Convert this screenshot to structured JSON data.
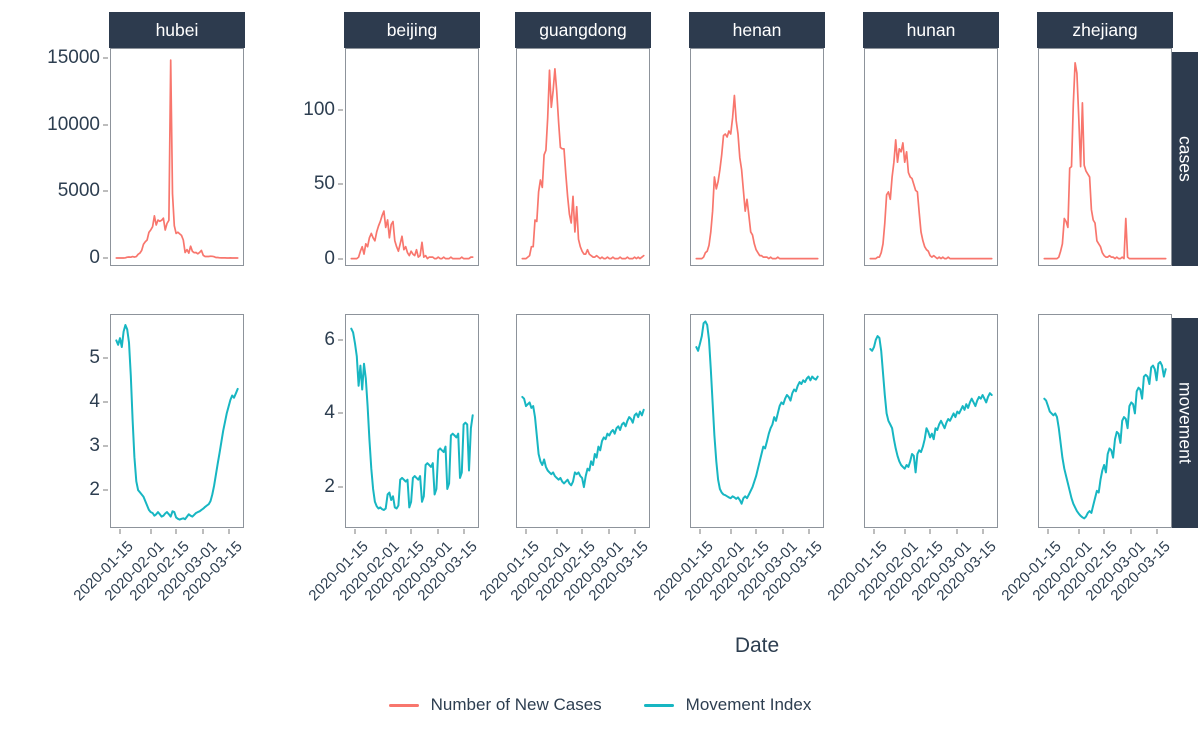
{
  "figure": {
    "x_axis": {
      "label": "Date",
      "tick_labels": [
        "2020-01-15",
        "2020-02-01",
        "2020-02-15",
        "2020-03-01",
        "2020-03-15"
      ]
    },
    "legend": {
      "items": [
        {
          "label": "Number of New Cases",
          "color": "#F8766D"
        },
        {
          "label": "Movement Index",
          "color": "#17B6C2"
        }
      ]
    },
    "colors": {
      "strip_bg": "#2D3B4E",
      "strip_text": "#FFFFFF",
      "axis_text": "#2D3E50",
      "panel_border": "#8D939B",
      "tick_mark": "#BDBDBD",
      "background": "#FFFFFF",
      "cases_line": "#F8766D",
      "movement_line": "#17B6C2"
    }
  },
  "chart_data": {
    "type": "line",
    "facet_columns": [
      "hubei",
      "beijing",
      "guangdong",
      "henan",
      "hunan",
      "zhejiang"
    ],
    "facet_rows": [
      "cases",
      "movement"
    ],
    "x": {
      "start_date": "2020-01-13",
      "step_days": 1,
      "range": [
        "2020-01-13",
        "2020-03-20"
      ]
    },
    "x_ticks": [
      {
        "label": "2020-01-15",
        "day": 2
      },
      {
        "label": "2020-02-01",
        "day": 19
      },
      {
        "label": "2020-02-15",
        "day": 33
      },
      {
        "label": "2020-03-01",
        "day": 48
      },
      {
        "label": "2020-03-15",
        "day": 62
      }
    ],
    "series": [
      {
        "facet_row": "cases",
        "facet_col": "hubei",
        "name": "Number of New Cases",
        "color": "#F8766D",
        "y_axis_visible": true,
        "y_ticks": [
          0,
          5000,
          10000,
          15000
        ],
        "ylim": [
          -600,
          15750
        ],
        "values": [
          0,
          0,
          0,
          0,
          0,
          17,
          59,
          77,
          60,
          105,
          69,
          105,
          276,
          371,
          573,
          1032,
          1220,
          1347,
          1921,
          2103,
          2345,
          3156,
          2473,
          2841,
          2756,
          2827,
          2986,
          2102,
          2590,
          2829,
          14840,
          4823,
          2420,
          1843,
          1933,
          1807,
          1693,
          1349,
          411,
          630,
          366,
          888,
          499,
          401,
          409,
          318,
          423,
          573,
          196,
          114,
          110,
          115,
          134,
          126,
          100,
          36,
          40,
          13,
          5,
          4,
          11,
          1,
          1,
          4,
          2,
          1,
          1,
          0
        ]
      },
      {
        "facet_row": "cases",
        "facet_col": "beijing",
        "name": "Number of New Cases",
        "color": "#F8766D",
        "y_axis_visible": true,
        "y_ticks": [
          0,
          50,
          100
        ],
        "ylim": [
          -5,
          142
        ],
        "values": [
          0,
          0,
          0,
          0,
          1,
          5,
          8,
          3,
          10,
          8,
          14,
          17,
          14,
          12,
          18,
          22,
          25,
          29,
          32,
          21,
          26,
          14,
          23,
          25,
          12,
          8,
          5,
          10,
          15,
          6,
          8,
          4,
          2,
          5,
          3,
          2,
          6,
          1,
          2,
          11,
          1,
          2,
          0,
          1,
          1,
          1,
          0,
          0,
          1,
          0,
          0,
          1,
          0,
          0,
          0,
          1,
          0,
          0,
          0,
          0,
          0,
          1,
          0,
          0,
          0,
          0,
          1,
          1
        ]
      },
      {
        "facet_row": "cases",
        "facet_col": "guangdong",
        "name": "Number of New Cases",
        "color": "#F8766D",
        "y_axis_visible": false,
        "y_ticks": [
          0,
          50,
          100
        ],
        "ylim": [
          -5,
          142
        ],
        "values": [
          0,
          0,
          0,
          1,
          2,
          8,
          8,
          26,
          25,
          45,
          53,
          48,
          70,
          73,
          95,
          127,
          102,
          113,
          128,
          113,
          92,
          75,
          74,
          74,
          57,
          42,
          30,
          24,
          42,
          18,
          35,
          13,
          8,
          5,
          3,
          3,
          6,
          3,
          2,
          1,
          1,
          2,
          1,
          0,
          1,
          0,
          0,
          1,
          0,
          0,
          1,
          0,
          0,
          0,
          1,
          0,
          0,
          0,
          1,
          0,
          0,
          0,
          1,
          0,
          1,
          0,
          1,
          2
        ]
      },
      {
        "facet_row": "cases",
        "facet_col": "henan",
        "name": "Number of New Cases",
        "color": "#F8766D",
        "y_axis_visible": false,
        "y_ticks": [
          0,
          50,
          100
        ],
        "ylim": [
          -5,
          142
        ],
        "values": [
          0,
          0,
          0,
          0,
          1,
          4,
          5,
          9,
          18,
          32,
          55,
          47,
          52,
          60,
          70,
          83,
          84,
          82,
          86,
          84,
          95,
          110,
          93,
          84,
          68,
          60,
          46,
          32,
          40,
          29,
          18,
          16,
          10,
          6,
          4,
          2,
          2,
          1,
          1,
          1,
          0,
          1,
          0,
          0,
          0,
          1,
          0,
          0,
          0,
          0,
          0,
          0,
          0,
          0,
          0,
          0,
          0,
          0,
          0,
          0,
          0,
          0,
          0,
          0,
          0,
          0,
          0,
          0
        ]
      },
      {
        "facet_row": "cases",
        "facet_col": "hunan",
        "name": "Number of New Cases",
        "color": "#F8766D",
        "y_axis_visible": false,
        "y_ticks": [
          0,
          50,
          100
        ],
        "ylim": [
          -5,
          142
        ],
        "values": [
          0,
          0,
          0,
          0,
          1,
          1,
          4,
          10,
          24,
          43,
          45,
          40,
          55,
          65,
          80,
          65,
          74,
          72,
          78,
          65,
          72,
          58,
          55,
          54,
          50,
          46,
          45,
          31,
          18,
          12,
          8,
          6,
          5,
          2,
          1,
          2,
          1,
          0,
          1,
          0,
          1,
          0,
          0,
          1,
          0,
          0,
          0,
          0,
          0,
          0,
          0,
          0,
          0,
          0,
          0,
          0,
          0,
          0,
          0,
          0,
          0,
          0,
          0,
          0,
          0,
          0,
          0,
          0
        ]
      },
      {
        "facet_row": "cases",
        "facet_col": "zhejiang",
        "name": "Number of New Cases",
        "color": "#F8766D",
        "y_axis_visible": false,
        "y_ticks": [
          0,
          50,
          100
        ],
        "ylim": [
          -5,
          142
        ],
        "values": [
          0,
          0,
          0,
          0,
          0,
          0,
          0,
          0,
          1,
          5,
          10,
          27,
          25,
          21,
          61,
          62,
          104,
          132,
          125,
          96,
          62,
          105,
          63,
          59,
          57,
          55,
          33,
          26,
          24,
          12,
          10,
          8,
          4,
          2,
          1,
          1,
          2,
          1,
          1,
          0,
          1,
          0,
          0,
          1,
          0,
          27,
          1,
          0,
          0,
          0,
          0,
          0,
          0,
          0,
          0,
          0,
          0,
          0,
          0,
          0,
          0,
          0,
          0,
          0,
          0,
          0,
          0,
          0
        ]
      },
      {
        "facet_row": "movement",
        "facet_col": "hubei",
        "name": "Movement Index",
        "color": "#17B6C2",
        "y_axis_visible": true,
        "y_ticks": [
          2,
          3,
          4,
          5
        ],
        "ylim": [
          1.14,
          6.0
        ],
        "values": [
          5.4,
          5.3,
          5.45,
          5.25,
          5.6,
          5.75,
          5.65,
          5.35,
          4.6,
          3.6,
          2.75,
          2.2,
          2.0,
          1.95,
          1.9,
          1.85,
          1.75,
          1.65,
          1.55,
          1.5,
          1.48,
          1.42,
          1.45,
          1.5,
          1.45,
          1.4,
          1.42,
          1.47,
          1.5,
          1.45,
          1.4,
          1.52,
          1.5,
          1.38,
          1.35,
          1.33,
          1.35,
          1.36,
          1.34,
          1.4,
          1.45,
          1.42,
          1.4,
          1.44,
          1.48,
          1.5,
          1.52,
          1.55,
          1.58,
          1.62,
          1.65,
          1.68,
          1.75,
          1.9,
          2.1,
          2.35,
          2.6,
          2.85,
          3.1,
          3.35,
          3.55,
          3.75,
          3.9,
          4.05,
          4.15,
          4.1,
          4.2,
          4.3
        ]
      },
      {
        "facet_row": "movement",
        "facet_col": "beijing",
        "name": "Movement Index",
        "color": "#17B6C2",
        "y_axis_visible": true,
        "y_ticks": [
          2,
          4,
          6
        ],
        "ylim": [
          0.89,
          6.7
        ],
        "values": [
          6.3,
          6.2,
          5.9,
          5.55,
          4.75,
          5.3,
          4.65,
          5.35,
          4.95,
          4.2,
          3.3,
          2.5,
          1.95,
          1.6,
          1.48,
          1.42,
          1.45,
          1.4,
          1.38,
          1.42,
          1.8,
          1.85,
          1.65,
          1.75,
          1.45,
          1.42,
          1.5,
          2.2,
          2.25,
          2.2,
          2.15,
          2.2,
          1.45,
          1.6,
          2.25,
          2.3,
          2.25,
          2.2,
          2.3,
          1.6,
          1.75,
          2.6,
          2.65,
          2.6,
          2.55,
          2.65,
          1.8,
          1.95,
          3.0,
          3.05,
          3.0,
          2.95,
          3.1,
          1.95,
          2.1,
          3.4,
          3.45,
          3.4,
          3.35,
          3.45,
          2.25,
          2.4,
          3.7,
          3.75,
          3.7,
          2.45,
          3.6,
          3.95
        ]
      },
      {
        "facet_row": "movement",
        "facet_col": "guangdong",
        "name": "Movement Index",
        "color": "#17B6C2",
        "y_axis_visible": false,
        "y_ticks": [
          2,
          4,
          6
        ],
        "ylim": [
          0.89,
          6.7
        ],
        "values": [
          4.45,
          4.4,
          4.2,
          4.25,
          4.3,
          4.15,
          4.2,
          3.9,
          3.4,
          2.9,
          2.7,
          2.6,
          2.75,
          2.55,
          2.45,
          2.4,
          2.35,
          2.4,
          2.3,
          2.25,
          2.2,
          2.25,
          2.15,
          2.1,
          2.15,
          2.2,
          2.1,
          2.05,
          2.15,
          2.4,
          2.35,
          2.4,
          2.3,
          2.25,
          2.0,
          2.3,
          2.5,
          2.45,
          2.7,
          2.6,
          2.9,
          2.8,
          3.1,
          3.0,
          3.25,
          3.35,
          3.3,
          3.45,
          3.4,
          3.5,
          3.55,
          3.45,
          3.6,
          3.65,
          3.55,
          3.7,
          3.75,
          3.65,
          3.8,
          3.9,
          3.85,
          3.75,
          3.95,
          4.0,
          3.9,
          4.05,
          3.95,
          4.1
        ]
      },
      {
        "facet_row": "movement",
        "facet_col": "henan",
        "name": "Movement Index",
        "color": "#17B6C2",
        "y_axis_visible": false,
        "y_ticks": [
          2,
          4,
          6
        ],
        "ylim": [
          0.89,
          6.7
        ],
        "values": [
          5.8,
          5.7,
          5.9,
          6.1,
          6.45,
          6.5,
          6.4,
          6.0,
          5.2,
          4.3,
          3.4,
          2.7,
          2.2,
          1.95,
          1.85,
          1.8,
          1.78,
          1.75,
          1.72,
          1.7,
          1.75,
          1.72,
          1.68,
          1.72,
          1.65,
          1.55,
          1.7,
          1.75,
          1.7,
          1.8,
          1.9,
          2.0,
          2.15,
          2.3,
          2.5,
          2.7,
          2.9,
          3.1,
          3.05,
          3.25,
          3.45,
          3.6,
          3.7,
          3.9,
          3.8,
          4.0,
          4.2,
          4.3,
          4.25,
          4.4,
          4.5,
          4.45,
          4.35,
          4.55,
          4.65,
          4.6,
          4.75,
          4.85,
          4.8,
          4.9,
          4.85,
          4.95,
          5.0,
          4.9,
          5.0,
          4.95,
          4.92,
          5.0
        ]
      },
      {
        "facet_row": "movement",
        "facet_col": "hunan",
        "name": "Movement Index",
        "color": "#17B6C2",
        "y_axis_visible": false,
        "y_ticks": [
          2,
          4,
          6
        ],
        "ylim": [
          0.89,
          6.7
        ],
        "values": [
          5.75,
          5.7,
          5.8,
          6.0,
          6.1,
          6.05,
          5.7,
          5.1,
          4.5,
          4.0,
          3.8,
          3.7,
          3.6,
          3.3,
          3.05,
          2.85,
          2.7,
          2.6,
          2.55,
          2.5,
          2.6,
          2.55,
          2.7,
          2.9,
          2.85,
          2.4,
          2.9,
          3.0,
          2.95,
          3.1,
          3.3,
          3.6,
          3.5,
          3.35,
          3.45,
          3.3,
          3.6,
          3.55,
          3.7,
          3.8,
          3.7,
          3.6,
          3.75,
          3.85,
          3.8,
          3.9,
          4.0,
          3.9,
          4.05,
          4.0,
          4.1,
          4.2,
          4.1,
          4.25,
          4.15,
          4.3,
          4.4,
          4.3,
          4.2,
          4.35,
          4.45,
          4.4,
          4.5,
          4.4,
          4.3,
          4.45,
          4.55,
          4.5
        ]
      },
      {
        "facet_row": "movement",
        "facet_col": "zhejiang",
        "name": "Movement Index",
        "color": "#17B6C2",
        "y_axis_visible": false,
        "y_ticks": [
          2,
          4,
          6
        ],
        "ylim": [
          0.89,
          6.7
        ],
        "values": [
          4.4,
          4.35,
          4.2,
          4.05,
          4.0,
          3.95,
          4.0,
          3.9,
          3.6,
          3.2,
          2.8,
          2.5,
          2.3,
          2.1,
          1.9,
          1.7,
          1.55,
          1.45,
          1.35,
          1.28,
          1.22,
          1.18,
          1.15,
          1.2,
          1.3,
          1.35,
          1.3,
          1.5,
          1.7,
          1.9,
          1.85,
          2.2,
          2.45,
          2.6,
          2.4,
          2.9,
          3.05,
          3.0,
          2.8,
          3.3,
          3.5,
          3.45,
          3.2,
          3.8,
          3.9,
          3.85,
          3.6,
          4.2,
          4.3,
          4.25,
          4.0,
          4.6,
          4.7,
          4.65,
          4.4,
          5.0,
          5.05,
          5.0,
          4.8,
          5.25,
          5.3,
          5.2,
          4.9,
          5.35,
          5.4,
          5.3,
          5.0,
          5.2
        ]
      }
    ]
  }
}
